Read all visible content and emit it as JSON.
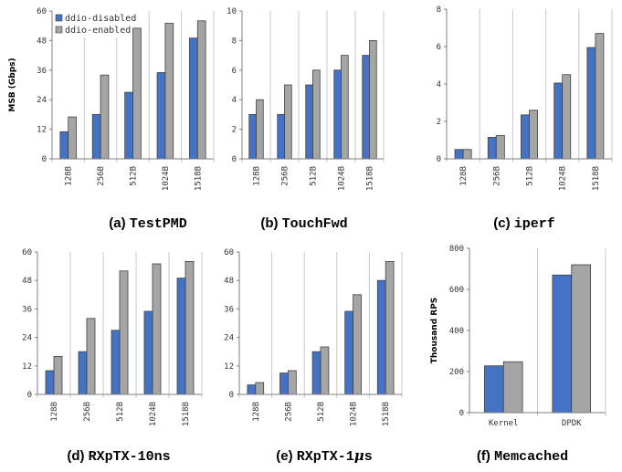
{
  "legend": {
    "series_names": [
      "ddio-disabled",
      "ddio-enabled"
    ]
  },
  "colors": {
    "series": [
      "#4472c4",
      "#a5a5a5"
    ],
    "bar_stroke": "#404040"
  },
  "chart_data": [
    {
      "id": "a",
      "type": "bar",
      "caption": {
        "letter": "(a)",
        "name": "TestPMD"
      },
      "ylabel": "MSB (Gbps)",
      "ylim": [
        0,
        60
      ],
      "yticks": [
        0,
        12,
        24,
        36,
        48,
        60
      ],
      "categories": [
        "128B",
        "256B",
        "512B",
        "1024B",
        "1518B"
      ],
      "series": [
        {
          "name": "ddio-disabled",
          "values": [
            11,
            18,
            27,
            35,
            49
          ]
        },
        {
          "name": "ddio-enabled",
          "values": [
            17,
            34,
            53,
            55,
            56
          ]
        }
      ],
      "legend": "top-left",
      "grid": "vertical"
    },
    {
      "id": "b",
      "type": "bar",
      "caption": {
        "letter": "(b)",
        "name": "TouchFwd"
      },
      "ylabel": "",
      "ylim": [
        0,
        10
      ],
      "yticks": [
        0,
        2,
        4,
        6,
        8,
        10
      ],
      "categories": [
        "128B",
        "256B",
        "512B",
        "1024B",
        "1518B"
      ],
      "series": [
        {
          "values": [
            3,
            3,
            5,
            6,
            7
          ]
        },
        {
          "values": [
            4,
            5,
            6,
            7,
            8
          ]
        }
      ],
      "grid": "vertical"
    },
    {
      "id": "c",
      "type": "bar",
      "caption": {
        "letter": "(c)",
        "name": "iperf"
      },
      "ylabel": "",
      "ylim": [
        0,
        8
      ],
      "yticks": [
        0,
        2,
        4,
        6,
        8
      ],
      "categories": [
        "128B",
        "256B",
        "512B",
        "1024B",
        "1518B"
      ],
      "series": [
        {
          "values": [
            0.5,
            1.15,
            2.35,
            4.05,
            5.95
          ]
        },
        {
          "values": [
            0.5,
            1.25,
            2.6,
            4.5,
            6.7
          ]
        }
      ],
      "grid": "vertical"
    },
    {
      "id": "d",
      "type": "bar",
      "caption": {
        "letter": "(d)",
        "name": "RXpTX-10ns"
      },
      "ylabel": "",
      "ylim": [
        0,
        60
      ],
      "yticks": [
        0,
        12,
        24,
        36,
        48,
        60
      ],
      "categories": [
        "128B",
        "256B",
        "512B",
        "1024B",
        "1518B"
      ],
      "series": [
        {
          "values": [
            10,
            18,
            27,
            35,
            49
          ]
        },
        {
          "values": [
            16,
            32,
            52,
            55,
            56
          ]
        }
      ],
      "grid": "vertical"
    },
    {
      "id": "e",
      "type": "bar",
      "caption": {
        "letter": "(e)",
        "name": "RXpTX-1",
        "mu": "μ",
        "suffix": "s"
      },
      "ylabel": "",
      "ylim": [
        0,
        60
      ],
      "yticks": [
        0,
        12,
        24,
        36,
        48,
        60
      ],
      "categories": [
        "128B",
        "256B",
        "512B",
        "1024B",
        "1518B"
      ],
      "series": [
        {
          "values": [
            4,
            9,
            18,
            35,
            48
          ]
        },
        {
          "values": [
            5,
            10,
            20,
            42,
            56
          ]
        }
      ],
      "grid": "vertical"
    },
    {
      "id": "f",
      "type": "bar",
      "caption": {
        "letter": "(f)",
        "name": "Memcached"
      },
      "ylabel": "Thousand RPS",
      "ylim": [
        0,
        800
      ],
      "yticks": [
        0,
        200,
        400,
        600,
        800
      ],
      "categories": [
        "Kernel",
        "DPDK"
      ],
      "series": [
        {
          "values": [
            228,
            670
          ]
        },
        {
          "values": [
            248,
            720
          ]
        }
      ],
      "grid": "vertical"
    }
  ]
}
